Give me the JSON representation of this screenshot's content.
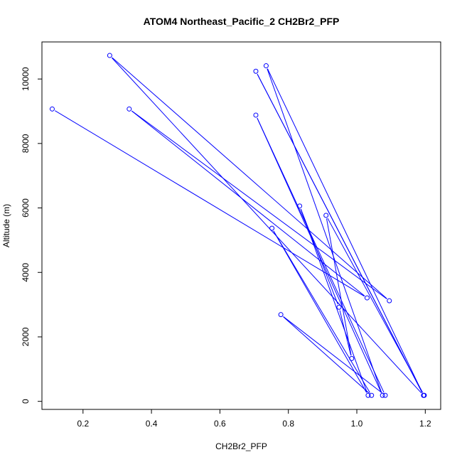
{
  "chart_data": {
    "type": "line",
    "title": "ATOM4 Northeast_Pacific_2 CH2Br2_PFP",
    "xlabel": "CH2Br2_PFP",
    "ylabel": "Altitude (m)",
    "xlim": [
      0.08,
      1.245
    ],
    "ylim": [
      -250,
      11150
    ],
    "xticks": [
      0.2,
      0.4,
      0.6,
      0.8,
      1.0,
      1.2
    ],
    "xtick_labels": [
      "0.2",
      "0.4",
      "0.6",
      "0.8",
      "1.0",
      "1.2"
    ],
    "yticks": [
      0,
      2000,
      4000,
      6000,
      8000,
      10000
    ],
    "ytick_labels": [
      "0",
      "2000",
      "4000",
      "6000",
      "8000",
      "10000"
    ],
    "grid": false,
    "color": "#0000ff",
    "marker": "open-circle",
    "series": [
      {
        "points": [
          [
            0.11,
            9070
          ],
          [
            1.03,
            3210
          ],
          [
            0.335,
            9070
          ],
          [
            1.095,
            3120
          ],
          [
            0.278,
            10730
          ],
          [
            1.195,
            185
          ],
          [
            0.705,
            10240
          ],
          [
            1.195,
            185
          ],
          [
            0.735,
            10410
          ],
          [
            1.075,
            185
          ],
          [
            0.705,
            8880
          ],
          [
            1.083,
            185
          ],
          [
            0.778,
            2690
          ],
          [
            1.043,
            185
          ],
          [
            0.752,
            5370
          ],
          [
            1.033,
            185
          ],
          [
            0.833,
            6060
          ],
          [
            0.948,
            2920
          ],
          [
            0.985,
            1330
          ],
          [
            0.91,
            5770
          ],
          [
            1.197,
            185
          ]
        ]
      }
    ]
  }
}
